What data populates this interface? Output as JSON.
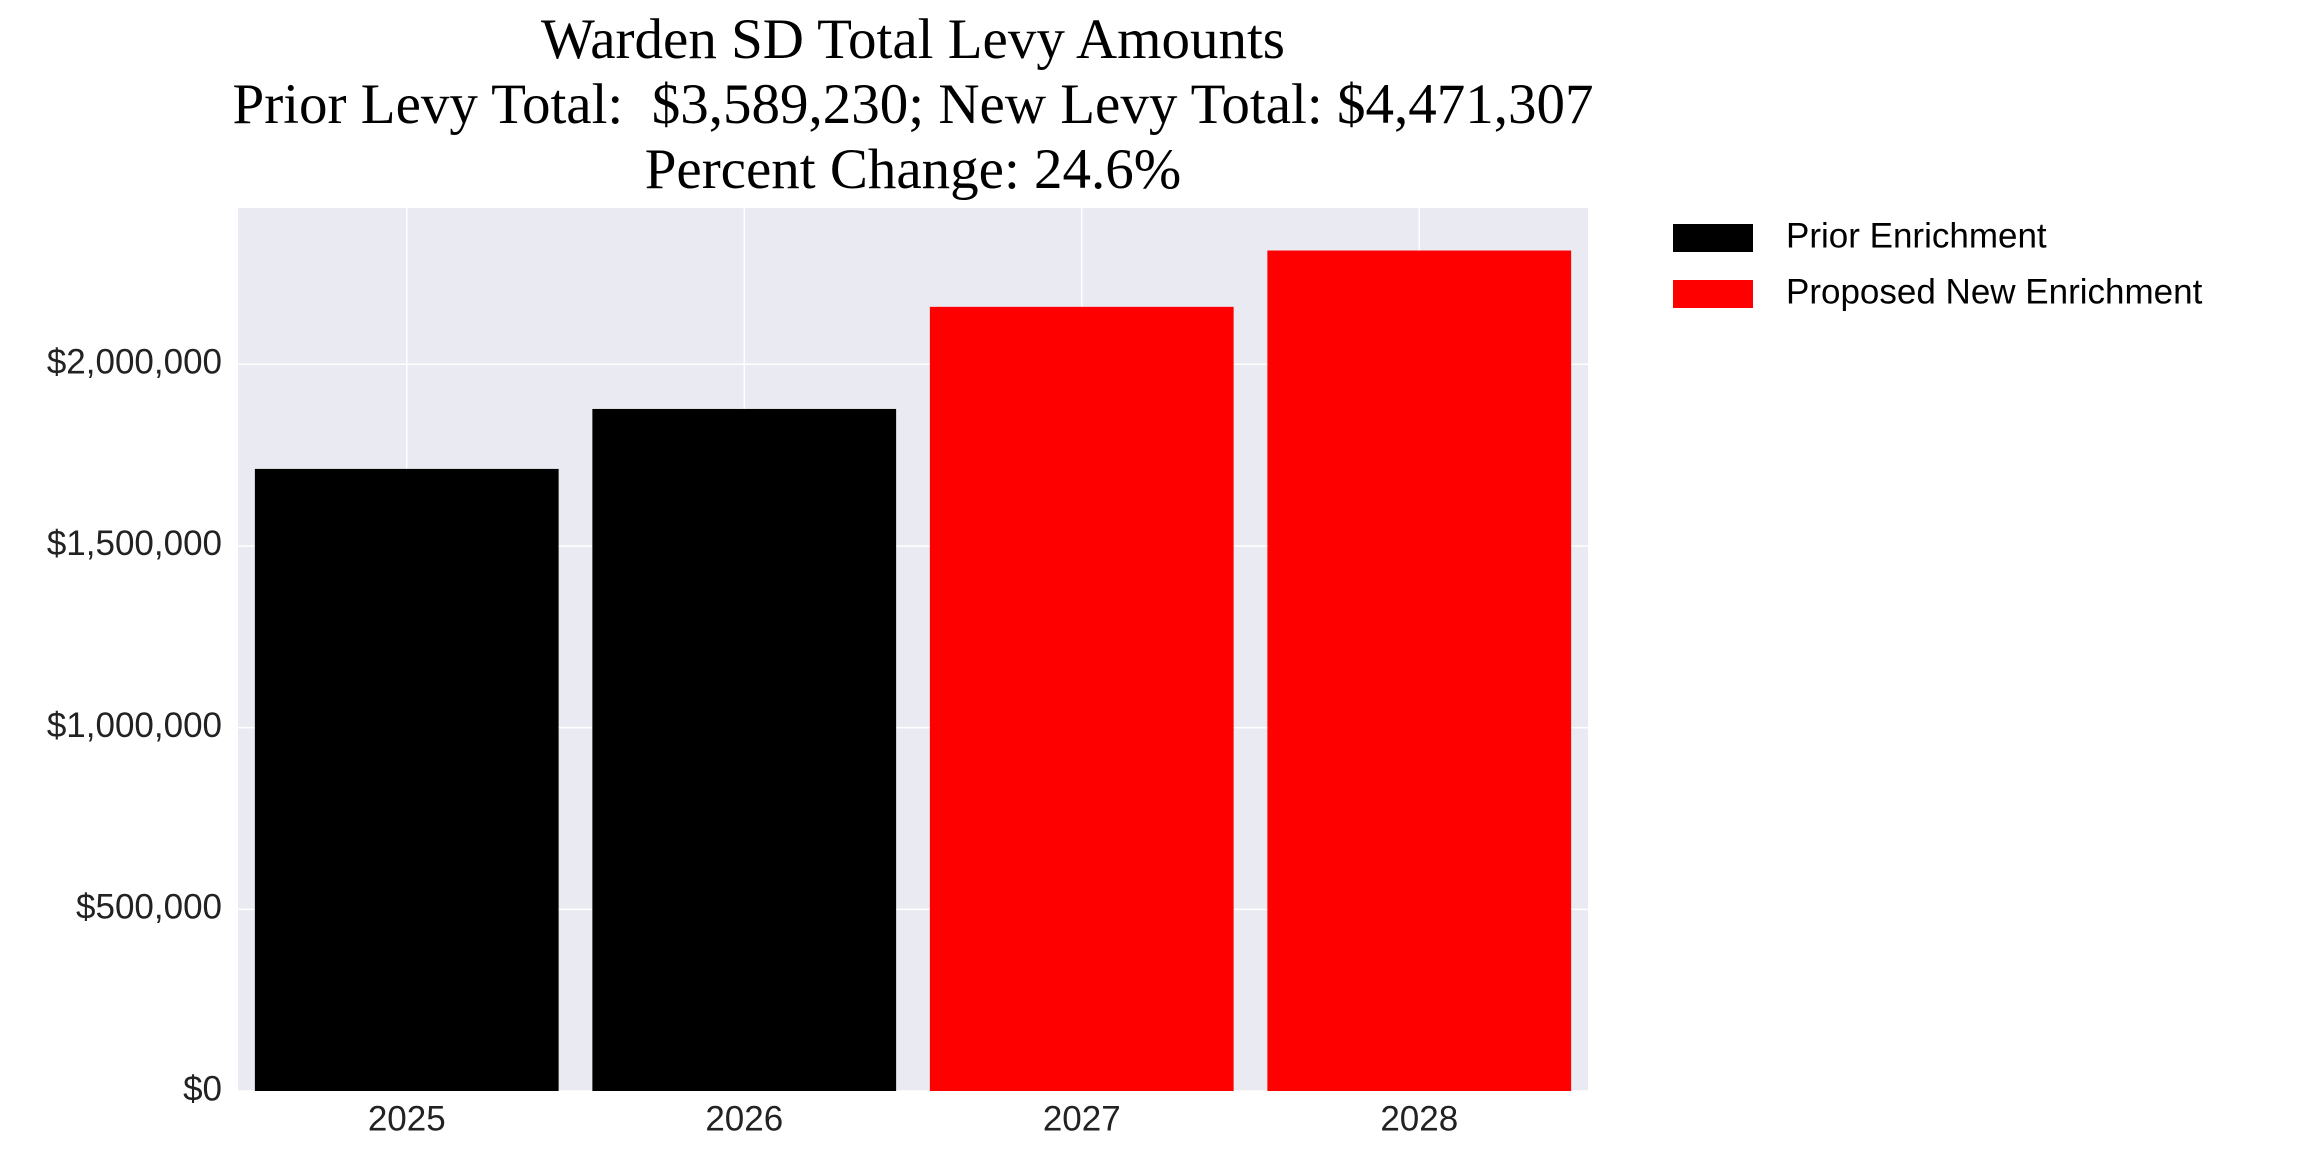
{
  "chart_data": {
    "type": "bar",
    "title": "Warden SD Total Levy Amounts",
    "subtitle": [
      "Prior Levy Total:  $3,589,230; New Levy Total: $4,471,307",
      "Percent Change: 24.6%"
    ],
    "categories": [
      "2025",
      "2026",
      "2027",
      "2028"
    ],
    "series": [
      {
        "name": "Prior Enrichment",
        "color": "#000000",
        "values": [
          1712000,
          1877000,
          null,
          null
        ]
      },
      {
        "name": "Proposed New Enrichment",
        "color": "#ff0000",
        "values": [
          null,
          null,
          2158000,
          2313000
        ]
      }
    ],
    "ylim": [
      0,
      2430000
    ],
    "yticks": [
      {
        "value": 0,
        "label": "$0"
      },
      {
        "value": 500000,
        "label": "$500,000"
      },
      {
        "value": 1000000,
        "label": "$1,000,000"
      },
      {
        "value": 1500000,
        "label": "$1,500,000"
      },
      {
        "value": 2000000,
        "label": "$2,000,000"
      }
    ],
    "grid": true,
    "legend": "outside-right"
  }
}
